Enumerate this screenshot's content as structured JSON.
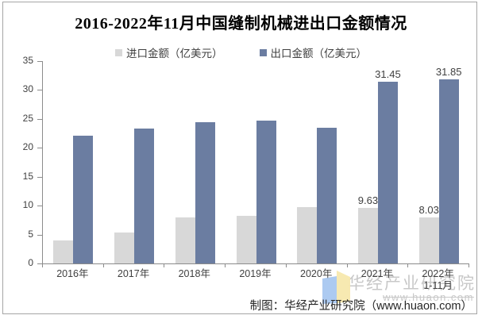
{
  "title": "2016-2022年11月中国缝制机械进出口金额情况",
  "chart_data": {
    "type": "bar",
    "title": "2016-2022年11月中国缝制机械进出口金额情况",
    "categories": [
      "2016年",
      "2017年",
      "2018年",
      "2019年",
      "2020年",
      "2021年",
      "2022年\n1-11月"
    ],
    "series": [
      {
        "name": "进口金额（亿美元）",
        "color": "#d8d8d8",
        "values": [
          4.0,
          5.3,
          7.9,
          8.3,
          9.8,
          9.63,
          8.03
        ],
        "point_labels": [
          null,
          null,
          null,
          null,
          null,
          "9.63",
          "8.03"
        ]
      },
      {
        "name": "出口金额（亿美元）",
        "color": "#6b7da1",
        "values": [
          22.1,
          23.3,
          24.5,
          24.7,
          23.5,
          31.45,
          31.85
        ],
        "point_labels": [
          null,
          null,
          null,
          null,
          null,
          "31.45",
          "31.85"
        ]
      }
    ],
    "ylim": [
      0,
      35
    ],
    "yticks": [
      0,
      5,
      10,
      15,
      20,
      25,
      30,
      35
    ],
    "legend_position": "top",
    "grid": false
  },
  "watermark": {
    "brand": "华经产业研究院",
    "site": "www.huaon.com"
  },
  "footer": {
    "text": "制图：华经产业研究院（www.huaon.com）"
  },
  "colors": {
    "import_bar": "#d8d8d8",
    "export_bar": "#6b7da1",
    "axis": "#8c8c8c",
    "axis_text": "#404040",
    "title_text": "#000000",
    "frame_border": "#a6a6a6",
    "watermark_gray": "#c8c8c8",
    "logo_blue": "#a8c7f0",
    "logo_yellow": "#f7e8ad"
  }
}
